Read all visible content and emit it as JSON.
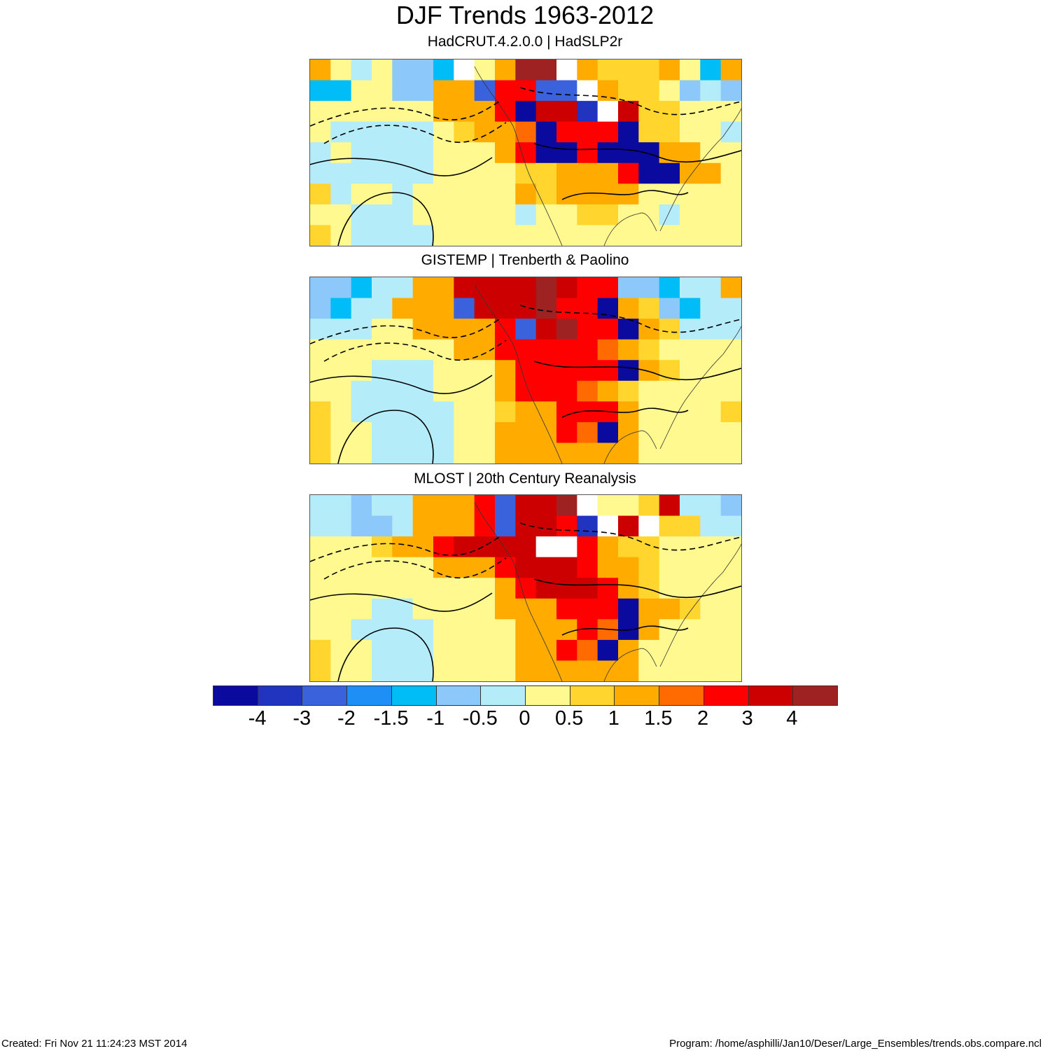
{
  "header": {
    "title": "DJF Trends 1963-2012"
  },
  "panels": [
    {
      "label": "HadCRUT.4.2.0.0 | HadSLP2r"
    },
    {
      "label": "GISTEMP | Trenberth & Paolino"
    },
    {
      "label": "MLOST | 20th Century Reanalysis"
    }
  ],
  "colorbar": {
    "colors": [
      "#0a0a9e",
      "#2134c0",
      "#3a62dc",
      "#1e8ff5",
      "#00bdf7",
      "#8cc8fa",
      "#b4ecfa",
      "#fff990",
      "#ffd52e",
      "#ffab00",
      "#ff6b00",
      "#ff0000",
      "#cc0000",
      "#9e2222"
    ],
    "labels": [
      "-4",
      "-3",
      "-2",
      "-1.5",
      "-1",
      "-0.5",
      "0",
      "0.5",
      "1",
      "1.5",
      "2",
      "3",
      "4"
    ]
  },
  "footer": {
    "created": "Created: Fri Nov 21 11:24:23 MST 2014",
    "program": "Program: /home/asphilli/Jan10/Deser/Large_Ensembles/trends.obs.compare.ncl"
  }
}
